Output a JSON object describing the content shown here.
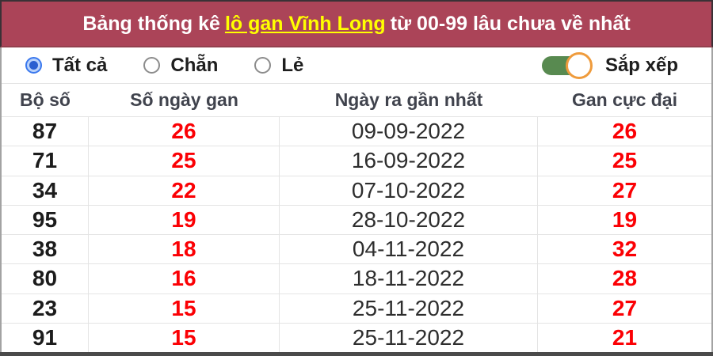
{
  "header": {
    "title_prefix": "Bảng thống kê",
    "title_link": "lô gan Vĩnh Long",
    "title_suffix": "từ 00-99 lâu chưa về nhất"
  },
  "filters": {
    "options": [
      {
        "label": "Tất cả",
        "selected": true
      },
      {
        "label": "Chẵn",
        "selected": false
      },
      {
        "label": "Lẻ",
        "selected": false
      }
    ],
    "sort_toggle": {
      "label": "Sắp xếp",
      "state": "on"
    }
  },
  "table": {
    "columns": [
      "Bộ số",
      "Số ngày gan",
      "Ngày ra gần nhất",
      "Gan cực đại"
    ],
    "rows": [
      {
        "num": "87",
        "days": "26",
        "date": "09-09-2022",
        "max": "26"
      },
      {
        "num": "71",
        "days": "25",
        "date": "16-09-2022",
        "max": "25"
      },
      {
        "num": "34",
        "days": "22",
        "date": "07-10-2022",
        "max": "27"
      },
      {
        "num": "95",
        "days": "19",
        "date": "28-10-2022",
        "max": "19"
      },
      {
        "num": "38",
        "days": "18",
        "date": "04-11-2022",
        "max": "32"
      },
      {
        "num": "80",
        "days": "16",
        "date": "18-11-2022",
        "max": "28"
      },
      {
        "num": "23",
        "days": "15",
        "date": "25-11-2022",
        "max": "27"
      },
      {
        "num": "91",
        "days": "15",
        "date": "25-11-2022",
        "max": "21"
      }
    ]
  },
  "colors": {
    "banner_bg": "#ab4458",
    "banner_border": "#3a3136",
    "link_yellow": "#ffff00",
    "value_red": "#fb0004",
    "radio_selected_blue": "#2a5fd0",
    "toggle_green": "#588a50",
    "toggle_knob_ring_orange": "#ef9b3c"
  }
}
